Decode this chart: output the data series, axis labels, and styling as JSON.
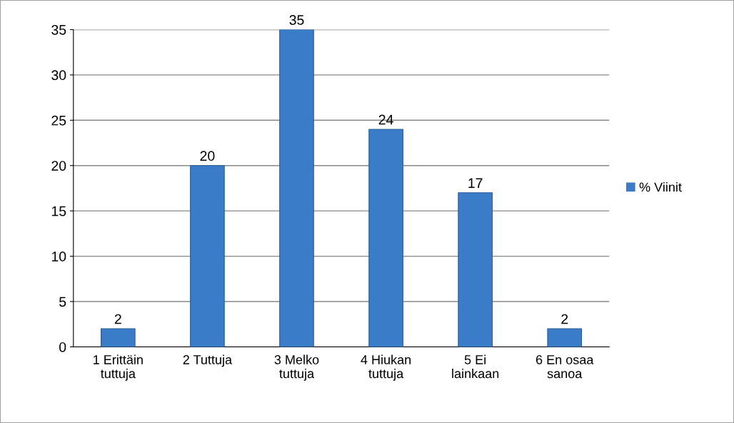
{
  "chart_data": {
    "type": "bar",
    "categories": [
      "1 Erittäin\ntuttuja",
      "2 Tuttuja",
      "3 Melko\ntuttuja",
      "4 Hiukan\ntuttuja",
      "5 Ei\nlainkaan",
      "6 En osaa\nsanoa"
    ],
    "series": [
      {
        "name": "% Viinit",
        "color": "#3a7cc8",
        "values": [
          2,
          20,
          35,
          24,
          17,
          2
        ]
      }
    ],
    "ylim": [
      0,
      35
    ],
    "yticks": [
      0,
      5,
      10,
      15,
      20,
      25,
      30,
      35
    ],
    "grid": "y",
    "legend": "right",
    "data_labels": true
  }
}
